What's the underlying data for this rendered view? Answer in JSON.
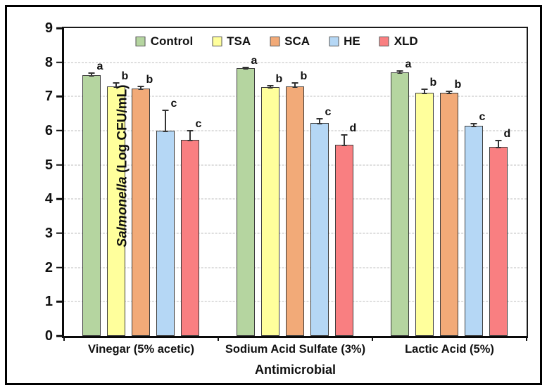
{
  "chart_data": {
    "type": "bar",
    "title": "",
    "xlabel": "Antimicrobial",
    "ylabel_italic": "Salmonella",
    "ylabel_rest": " (Log CFU/mL)",
    "ylim": [
      0,
      9
    ],
    "yticks": [
      "0",
      "1",
      "2",
      "3",
      "4",
      "5",
      "6",
      "7",
      "8",
      "9"
    ],
    "grid": "horizontal dashed gridlines at integers 1-8",
    "legend_position": "top center inside plot",
    "categories": [
      "Vinegar (5% acetic)",
      "Sodium Acid Sulfate (3%)",
      "Lactic Acid (5%)"
    ],
    "series": [
      {
        "name": "Control",
        "color": "#b5d5a0",
        "values": [
          7.62,
          7.83,
          7.7
        ],
        "errors": [
          0.07,
          0.03,
          0.04
        ],
        "letters": [
          "a",
          "a",
          "a"
        ]
      },
      {
        "name": "TSA",
        "color": "#ffff9c",
        "values": [
          7.3,
          7.28,
          7.11
        ],
        "errors": [
          0.1,
          0.04,
          0.11
        ],
        "letters": [
          "b",
          "b",
          "b"
        ]
      },
      {
        "name": "SCA",
        "color": "#f2aa78",
        "values": [
          7.23,
          7.3,
          7.12
        ],
        "errors": [
          0.07,
          0.09,
          0.03
        ],
        "letters": [
          "b",
          "b",
          "b"
        ]
      },
      {
        "name": "HE",
        "color": "#b5d7f5",
        "values": [
          6.0,
          6.23,
          6.14
        ],
        "errors": [
          0.6,
          0.12,
          0.07
        ],
        "letters": [
          "c",
          "c",
          "c"
        ]
      },
      {
        "name": "XLD",
        "color": "#f97f81",
        "values": [
          5.73,
          5.58,
          5.53
        ],
        "errors": [
          0.28,
          0.3,
          0.18
        ],
        "letters": [
          "c",
          "d",
          "d"
        ]
      }
    ],
    "colors": {
      "axis": "#0a0a0a",
      "gridline": "#bdbdbd",
      "bar_border": "#3d3d3d",
      "error_bar": "#333333",
      "text": "#111111",
      "background": "#ffffff"
    }
  }
}
